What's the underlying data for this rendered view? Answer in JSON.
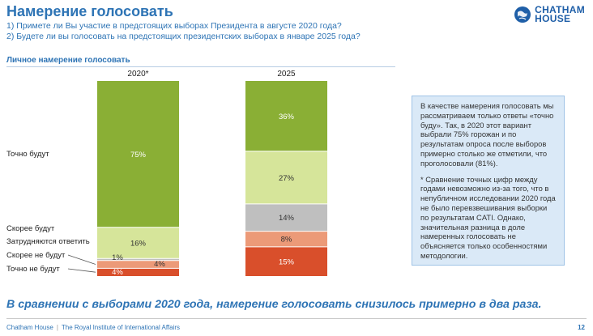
{
  "header": {
    "title": "Намерение голосовать",
    "question1": "1) Примете ли Вы участие в предстоящих выборах Президента в августе 2020 года?",
    "question2": "2) Будете ли вы голосовать на предстоящих президентских выборах в январе 2025 года?"
  },
  "logo": {
    "line1": "CHATHAM",
    "line2": "HOUSE"
  },
  "section_title": "Личное намерение голосовать",
  "chart_data": {
    "type": "bar",
    "stacked": true,
    "categories": [
      "2020*",
      "2025"
    ],
    "series": [
      {
        "name": "Точно не будут",
        "values": [
          4,
          15
        ],
        "labels": [
          "4%",
          "15%"
        ],
        "color": "#d94f2b"
      },
      {
        "name": "Скорее не будут",
        "values": [
          4,
          8
        ],
        "labels": [
          "4%",
          "8%"
        ],
        "color": "#ec9a78"
      },
      {
        "name": "Затрудняются ответить",
        "values": [
          1,
          14
        ],
        "labels": [
          "1%",
          "14%"
        ],
        "color": "#bfbfbf"
      },
      {
        "name": "Скорее будут",
        "values": [
          16,
          27
        ],
        "labels": [
          "16%",
          "27%"
        ],
        "color": "#d6e59a"
      },
      {
        "name": "Точно будут",
        "values": [
          75,
          36
        ],
        "labels": [
          "75%",
          "36%"
        ],
        "color": "#8aaf35"
      }
    ],
    "legend_placement": "left"
  },
  "infobox": {
    "paragraph1": "В качестве намерения голосовать мы рассматриваем только ответы «точно буду». Так, в 2020 этот вариант выбрали 75% горожан и по результатам опроса после выборов примерно столько же отметили, что проголосовали (81%).",
    "paragraph2": "* Сравнение точных цифр между годами невозможно из-за того, что в непубличном исследовании 2020 года не было перевзвешивания выборки по результатам CATI. Однако, значительная разница в доле намеренных голосовать не объясняется только особенностями методологии."
  },
  "conclusion": "В сравнении с выборами 2020 года, намерение голосовать снизилось примерно в два раза.",
  "footer": {
    "org": "Chatham House",
    "subtitle": "The Royal Institute of International Affairs",
    "page": "12"
  }
}
